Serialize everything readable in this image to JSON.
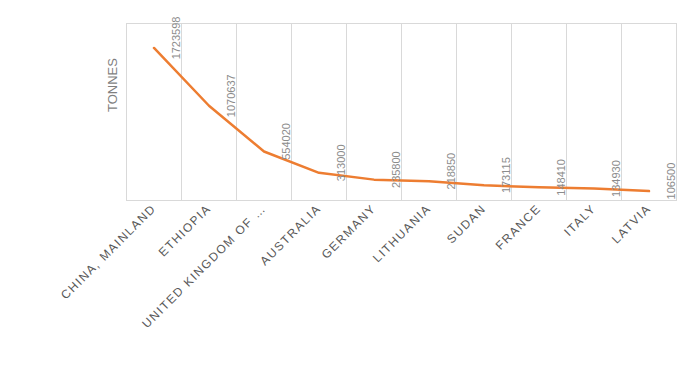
{
  "chart_data": {
    "type": "line",
    "y_label": "TONNES",
    "categories": [
      "CHINA, MAINLAND",
      "ETHIOPIA",
      "UNITED KINGDOM OF …",
      "AUSTRALIA",
      "GERMANY",
      "LITHUANIA",
      "SUDAN",
      "FRANCE",
      "ITALY",
      "LATVIA"
    ],
    "values": [
      1723598,
      1070637,
      554020,
      313000,
      235800,
      218850,
      173115,
      148410,
      134930,
      106500
    ],
    "color": "#ed7d31",
    "ylim": [
      0,
      2000000
    ],
    "grid": true,
    "data_labels": true,
    "tick_labels": "x"
  }
}
